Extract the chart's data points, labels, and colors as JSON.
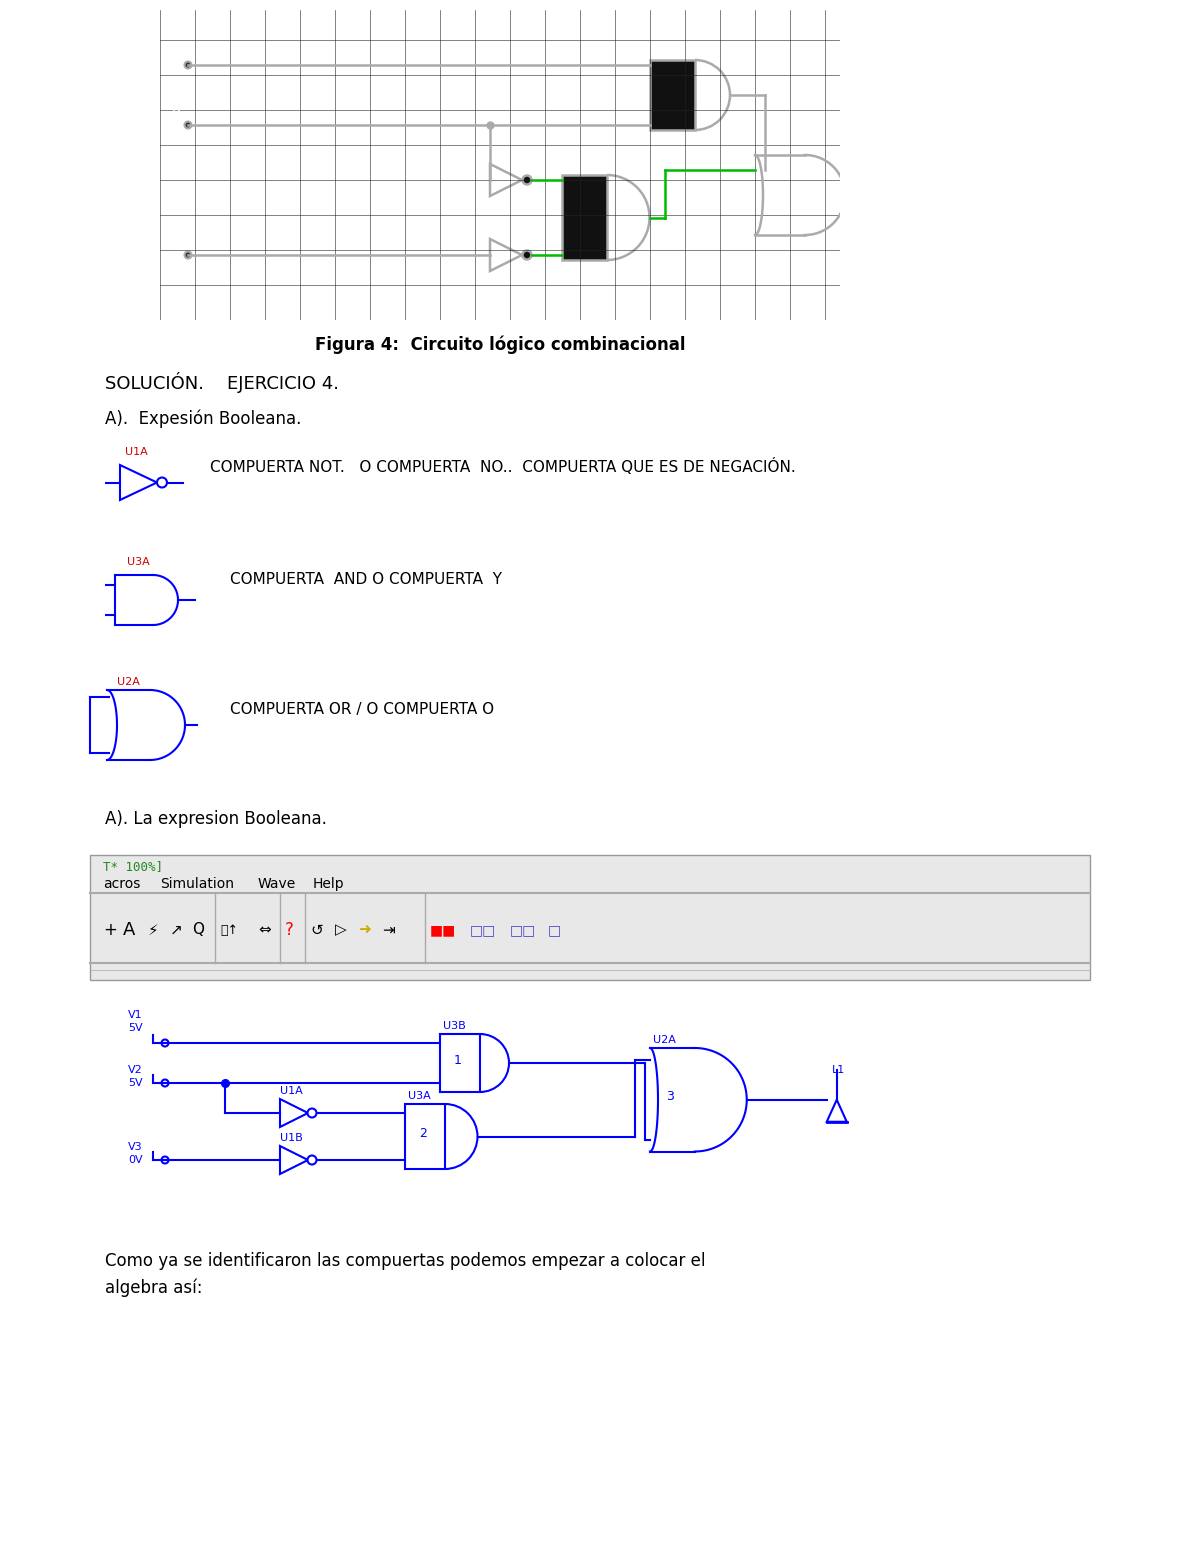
{
  "title": "Figura 4:  Circuito lógico combinacional",
  "solucion_text": "SOLUCIÓN.    EJERCICIO 4.",
  "a_label": "A).  Expesión Booleana.",
  "not_text": "COMPUERTA NOT.   O COMPUERTA  NO..  COMPUERTA QUE ES DE NEGACIÓN.",
  "and_text": "COMPUERTA  AND O COMPUERTA  Y",
  "or_text": "COMPUERTA OR / O COMPUERTA O",
  "a2_label": "A). La expresion Booleana.",
  "toolbar_text": "T* 100%]",
  "menu_text": "acros  Simulation  Wave  Help",
  "bottom_text": "Como ya se identificaron las compuertas podemos empezar a colocar el\nalgebra así:",
  "fig_bg": "#ffffff",
  "circuit_bg": "#080808",
  "grid_color": "#1a2a1a",
  "wire_color": "#aaaaaa",
  "green_color": "#00bb00",
  "blue_color": "#0000cc",
  "toolbar_bg": "#e8e8e8",
  "toolbar_border": "#999999"
}
